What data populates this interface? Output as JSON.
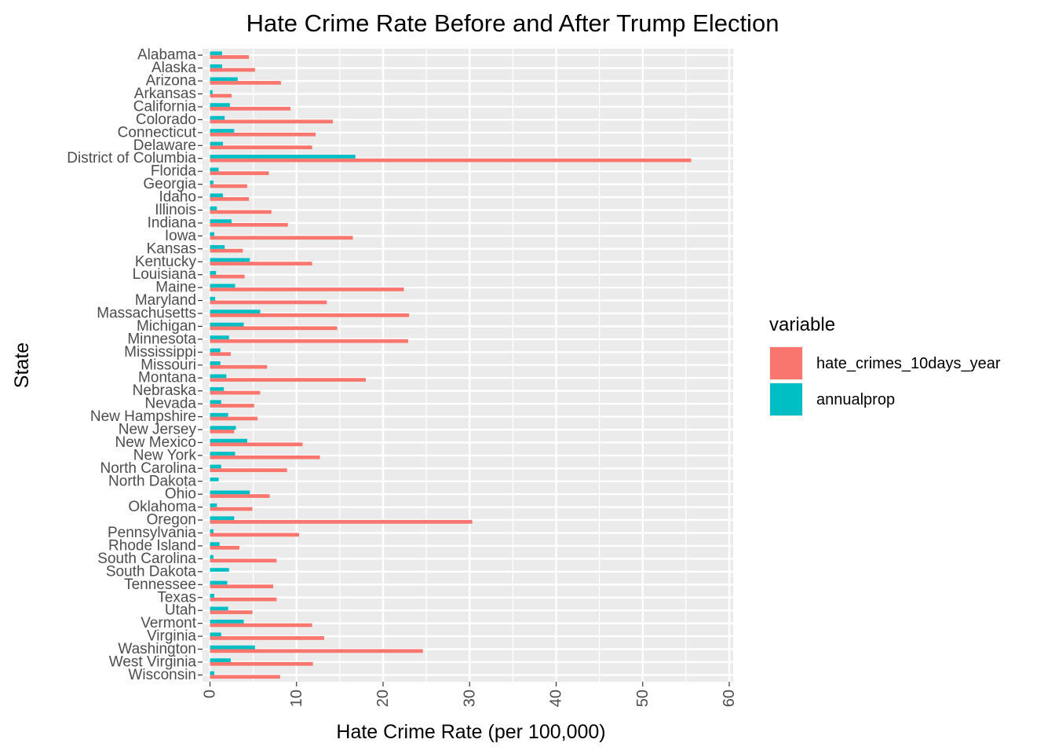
{
  "chart_data": {
    "type": "bar",
    "orientation": "horizontal",
    "title": "Hate Crime Rate Before and After Trump Election",
    "xlabel": "Hate Crime Rate (per 100,000)",
    "ylabel": "State",
    "xlim": [
      0,
      60
    ],
    "xticks": [
      "0",
      "10",
      "20",
      "30",
      "40",
      "50",
      "60"
    ],
    "grid": true,
    "legend": {
      "title": "variable",
      "position": "right"
    },
    "categories": [
      "Alabama",
      "Alaska",
      "Arizona",
      "Arkansas",
      "California",
      "Colorado",
      "Connecticut",
      "Delaware",
      "District of Columbia",
      "Florida",
      "Georgia",
      "Idaho",
      "Illinois",
      "Indiana",
      "Iowa",
      "Kansas",
      "Kentucky",
      "Louisiana",
      "Maine",
      "Maryland",
      "Massachusetts",
      "Michigan",
      "Minnesota",
      "Mississippi",
      "Missouri",
      "Montana",
      "Nebraska",
      "Nevada",
      "New Hampshire",
      "New Jersey",
      "New Mexico",
      "New York",
      "North Carolina",
      "North Dakota",
      "Ohio",
      "Oklahoma",
      "Oregon",
      "Pennsylvania",
      "Rhode Island",
      "South Carolina",
      "South Dakota",
      "Tennessee",
      "Texas",
      "Utah",
      "Vermont",
      "Virginia",
      "Washington",
      "West Virginia",
      "Wisconsin"
    ],
    "series": [
      {
        "name": "hate_crimes_10days_year",
        "color": "#F8766D",
        "values": [
          4.5,
          5.2,
          8.2,
          2.5,
          9.3,
          14.2,
          12.2,
          11.8,
          55.6,
          6.8,
          4.3,
          4.5,
          7.1,
          9.0,
          16.5,
          3.8,
          11.8,
          4.0,
          22.4,
          13.5,
          23.0,
          14.7,
          22.9,
          2.4,
          6.6,
          18.0,
          5.8,
          5.1,
          5.5,
          2.8,
          10.7,
          12.7,
          8.9,
          0,
          6.9,
          4.9,
          30.3,
          10.3,
          3.4,
          7.7,
          0,
          7.3,
          7.7,
          4.9,
          11.8,
          13.2,
          24.6,
          11.9,
          8.1
        ]
      },
      {
        "name": "annualprop",
        "color": "#00BFC4",
        "values": [
          1.4,
          1.4,
          3.2,
          0.3,
          2.3,
          1.7,
          2.8,
          1.5,
          16.8,
          1.0,
          0.4,
          1.5,
          0.8,
          2.5,
          0.5,
          1.7,
          4.6,
          0.7,
          2.9,
          0.6,
          5.8,
          3.9,
          2.2,
          1.2,
          1.2,
          1.9,
          1.6,
          1.3,
          2.1,
          3.0,
          4.3,
          2.9,
          1.3,
          1.0,
          4.6,
          0.8,
          2.8,
          0.4,
          1.1,
          0.4,
          2.2,
          2.0,
          0.5,
          2.1,
          3.9,
          1.3,
          5.2,
          2.4,
          0.5
        ]
      }
    ]
  }
}
